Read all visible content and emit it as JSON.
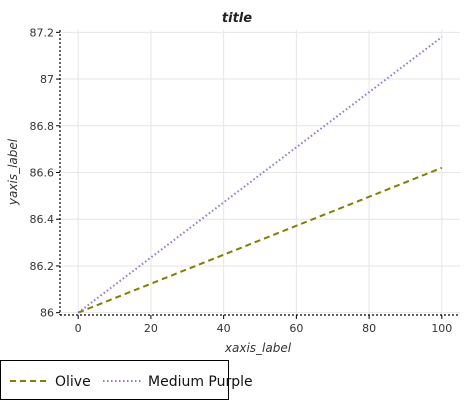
{
  "chart_data": {
    "type": "line",
    "title": "title",
    "xlabel": "xaxis_label",
    "ylabel": "yaxis_label",
    "xlim": [
      -5,
      105
    ],
    "ylim": [
      85.99,
      87.21
    ],
    "xticks": [
      0,
      20,
      40,
      60,
      80,
      100
    ],
    "yticks": [
      86,
      86.2,
      86.4,
      86.6,
      86.8,
      87,
      87.2
    ],
    "xtick_labels": [
      "0",
      "20",
      "40",
      "60",
      "80",
      "100"
    ],
    "ytick_labels": [
      "86",
      "86.2",
      "86.4",
      "86.6",
      "86.8",
      "87",
      "87.2"
    ],
    "grid": true,
    "legend_position": "bottom",
    "series": [
      {
        "name": "Olive",
        "color": "#808000",
        "dash": "dashed",
        "x": [
          0,
          100
        ],
        "y": [
          86,
          86.62
        ]
      },
      {
        "name": "Medium Purple",
        "color": "#9370DB",
        "dash": "dotted",
        "x": [
          0,
          100
        ],
        "y": [
          86,
          87.18
        ]
      }
    ]
  }
}
